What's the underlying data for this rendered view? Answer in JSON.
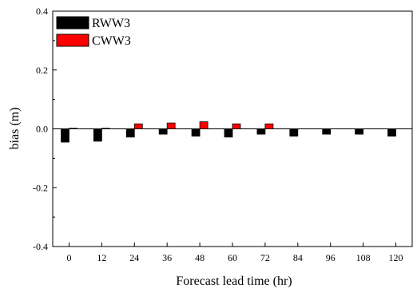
{
  "chart_data": {
    "type": "bar",
    "title": "",
    "xlabel": "Forecast lead time (hr)",
    "ylabel": "bias (m)",
    "ylim": [
      -0.4,
      0.4
    ],
    "yticks": [
      "-0.4",
      "-0.2",
      "0.0",
      "0.2",
      "0.4"
    ],
    "ytick_values": [
      -0.4,
      -0.2,
      0.0,
      0.2,
      0.4
    ],
    "categories": [
      "0",
      "12",
      "24",
      "36",
      "48",
      "60",
      "72",
      "84",
      "96",
      "108",
      "120"
    ],
    "series": [
      {
        "name": "RWW3",
        "color": "#000000",
        "values": [
          -0.045,
          -0.042,
          -0.028,
          -0.018,
          -0.025,
          -0.028,
          -0.018,
          -0.025,
          -0.018,
          -0.018,
          -0.025
        ]
      },
      {
        "name": "CWW3",
        "color": "#ff0000",
        "values": [
          0.002,
          0.002,
          0.017,
          0.02,
          0.024,
          0.017,
          0.017,
          0,
          0,
          0,
          0
        ]
      }
    ],
    "legend_position": "top-left",
    "grid": false,
    "zero_line": true
  }
}
